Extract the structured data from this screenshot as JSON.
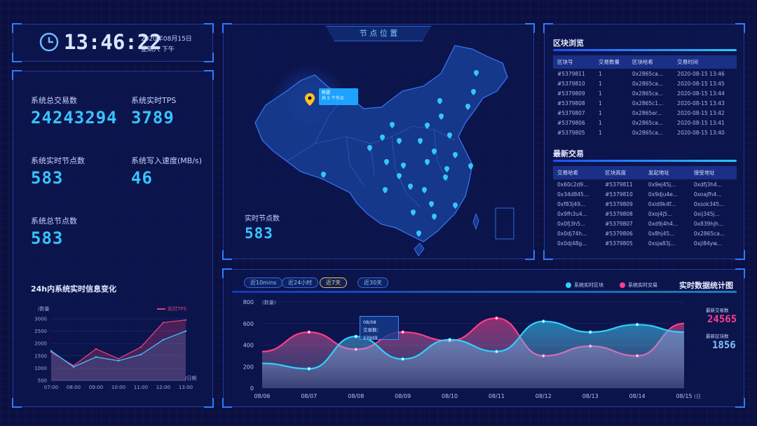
{
  "clock": {
    "time": "13:46:22",
    "date": "2020年08月15日",
    "weekday": "星期六 下午"
  },
  "stats": {
    "total_tx_label": "系统总交易数",
    "total_tx": "24243294",
    "tps_label": "系统实时TPS",
    "tps": "3789",
    "live_nodes_label": "系统实时节点数",
    "live_nodes": "583",
    "write_label": "系统写入速度(MB/s)",
    "write": "46",
    "total_nodes_label": "系统总节点数",
    "total_nodes": "583"
  },
  "line24": {
    "title": "24h内系统实时信息变化",
    "ylabel": "/数量",
    "xlabel": "/日期",
    "legend": "实时TPS",
    "yticks": [
      "3000",
      "2500",
      "2000",
      "1500",
      "1000",
      "500"
    ],
    "xticks": [
      "07:00",
      "08:00",
      "09:00",
      "10:00",
      "11:00",
      "12:00",
      "13:00"
    ]
  },
  "map": {
    "title": "节 点 位 置",
    "popup_line1": "新疆",
    "popup_line2": "共 5 个节点",
    "nodes_label": "实时节点数",
    "nodes": "583"
  },
  "blocks": {
    "title": "区块浏览",
    "headers": [
      "区块号",
      "交易数量",
      "区块哈希",
      "交易时间"
    ],
    "rows": [
      [
        "#5379811",
        "1",
        "0x2865ca...",
        "2020-08-15 13:46"
      ],
      [
        "#5379810",
        "1",
        "0x2865ca...",
        "2020-08-15 13:45"
      ],
      [
        "#5379809",
        "1",
        "0x2865ca...",
        "2020-08-15 13:44"
      ],
      [
        "#5379808",
        "1",
        "0x2865c1...",
        "2020-08-15 13:43"
      ],
      [
        "#5379807",
        "1",
        "0x2865er...",
        "2020-08-15 13:42"
      ],
      [
        "#5379806",
        "1",
        "0x2865ca...",
        "2020-08-15 13:41"
      ],
      [
        "#5379805",
        "1",
        "0x2865ca...",
        "2020-08-15 13:40"
      ]
    ]
  },
  "txs": {
    "title": "最新交易",
    "headers": [
      "交易哈希",
      "区块高度",
      "发起地址",
      "接受地址"
    ],
    "rows": [
      [
        "0x60c2d9...",
        "#5379811",
        "0x9ej45j...",
        "0xdfj3h4..."
      ],
      [
        "0x34d845...",
        "#5379810",
        "0x9dju4e...",
        "0xoajfh4..."
      ],
      [
        "0xf83j49...",
        "#5379809",
        "0xid9k4f...",
        "0xsok345..."
      ],
      [
        "0x9fh3u4...",
        "#5379808",
        "0xoj4j5...",
        "0xij345j..."
      ],
      [
        "0x0fj3h5...",
        "#5379807",
        "0xd9j4h4...",
        "0x839hjh..."
      ],
      [
        "0x0dj74h...",
        "#5379806",
        "0x8hj45...",
        "0x2865ca..."
      ],
      [
        "0x0dj48g...",
        "#5379805",
        "0xsja83j...",
        "0xji84yw..."
      ]
    ]
  },
  "stats_chart": {
    "title": "实时数据统计图",
    "filters": [
      "近10mins",
      "近24小时",
      "近7天",
      "近30天"
    ],
    "active_filter": "近7天",
    "legend_blocks": "系统实时区块",
    "legend_tx": "系统实时交易",
    "ylabel": "(数量)",
    "xlabel": "(日期)",
    "tooltip_date": "08/08",
    "tooltip_text": "交易数：23949",
    "latest_tx_label": "最新交易数",
    "latest_tx": "24565",
    "latest_block_label": "最新区块数",
    "latest_block": "1856"
  },
  "chart_data": [
    {
      "type": "line",
      "title": "24h内系统实时信息变化",
      "xlabel": "/日期",
      "ylabel": "/数量",
      "categories": [
        "07:00",
        "08:00",
        "09:00",
        "10:00",
        "11:00",
        "12:00",
        "13:00"
      ],
      "ylim": [
        500,
        3000
      ],
      "series": [
        {
          "name": "实时TPS",
          "color": "#e0407a",
          "values": [
            1650,
            1100,
            1780,
            1380,
            1850,
            2850,
            2950
          ]
        },
        {
          "name": "",
          "color": "#3ec3ff",
          "values": [
            1700,
            1050,
            1450,
            1300,
            1550,
            2150,
            2500
          ]
        }
      ]
    },
    {
      "type": "area",
      "title": "实时数据统计图",
      "xlabel": "(日期)",
      "ylabel": "(数量)",
      "categories": [
        "08/06",
        "08/07",
        "08/08",
        "08/09",
        "08/10",
        "08/11",
        "08/12",
        "08/13",
        "08/14",
        "08/15"
      ],
      "ylim": [
        0,
        800
      ],
      "series": [
        {
          "name": "系统实时区块",
          "color": "#2fd0ff",
          "values": [
            230,
            180,
            480,
            270,
            450,
            340,
            620,
            520,
            590,
            520
          ]
        },
        {
          "name": "系统实时交易",
          "color": "#ff3d8c",
          "values": [
            340,
            520,
            360,
            520,
            440,
            650,
            300,
            390,
            300,
            600
          ]
        }
      ]
    }
  ],
  "colors": {
    "accent": "#37c4ff",
    "pink": "#ff3d8c",
    "gold": "#ffd76a"
  }
}
